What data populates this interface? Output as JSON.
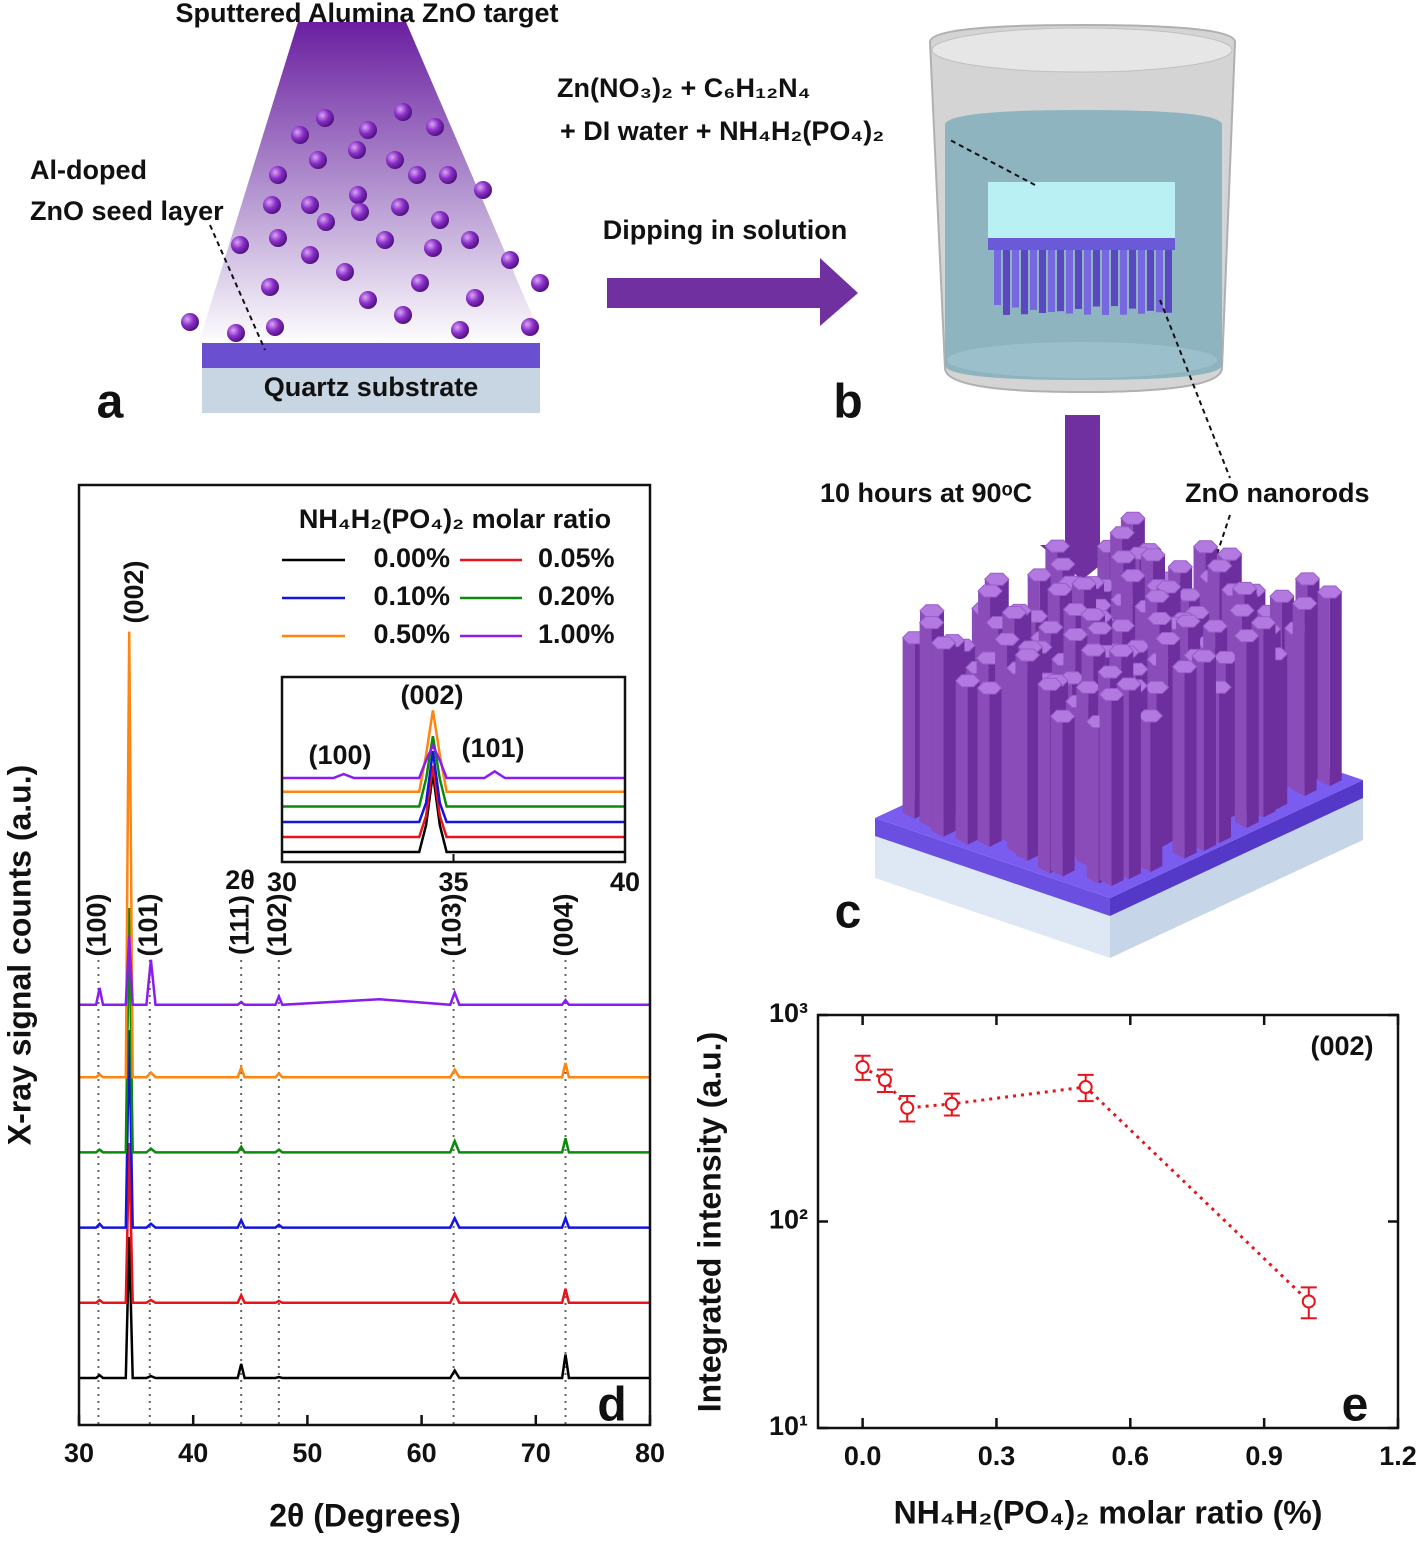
{
  "panel_a": {
    "title": "Sputtered Alumina ZnO target",
    "seed_label_lines": [
      "Al-doped",
      "ZnO seed layer"
    ],
    "substrate": "Quartz substrate",
    "panel_label": "a"
  },
  "panel_b": {
    "solution_lines": [
      "Zn(NO₃)₂ + C₆H₁₂N₄",
      "+ DI water + NH₄H₂(PO₄)₂"
    ],
    "arrow_label": "Dipping in solution",
    "panel_label": "b"
  },
  "panel_c": {
    "arrow_label": "10 hours at 90ᵒC",
    "nanorods_label": "ZnO nanorods",
    "panel_label": "c"
  },
  "chart_data": [
    {
      "type": "line",
      "panel_label": "d",
      "xlabel": "2θ (Degrees)",
      "ylabel": "X-ray signal counts (a.u.)",
      "legend_title": "NH₄H₂(PO₄)₂ molar ratio",
      "annotation": "(002)",
      "xlim": [
        30,
        80
      ],
      "xticks": [
        30,
        40,
        50,
        60,
        70,
        80
      ],
      "ylim": [
        0,
        100
      ],
      "x": [
        30,
        31.5,
        31.8,
        32.1,
        34.1,
        34.4,
        34.7,
        35.9,
        36.3,
        36.7,
        43.9,
        44.2,
        44.5,
        47.2,
        47.5,
        47.8,
        56.3,
        62.5,
        62.9,
        63.3,
        72.3,
        72.6,
        72.9,
        80
      ],
      "series": [
        {
          "name": "0.00%",
          "color": "#000000",
          "values": [
            5,
            5,
            5.3,
            5,
            5,
            20,
            5,
            5,
            5.2,
            5,
            5,
            6.5,
            5,
            5,
            5.1,
            5,
            5,
            5,
            5.8,
            5,
            5,
            7.5,
            5,
            5
          ]
        },
        {
          "name": "0.05%",
          "color": "#e8141c",
          "values": [
            13,
            13,
            13.3,
            13,
            13,
            30,
            13,
            13,
            13.3,
            13,
            13,
            13.8,
            13,
            13,
            13.2,
            13,
            13,
            13,
            14,
            13,
            13,
            14.5,
            13,
            13
          ]
        },
        {
          "name": "0.10%",
          "color": "#1414e0",
          "values": [
            21,
            21,
            21.4,
            21,
            21,
            42,
            21,
            21,
            21.4,
            21,
            21,
            21.8,
            21,
            21,
            21.3,
            21,
            21,
            21,
            22,
            21,
            21,
            22,
            21,
            21
          ]
        },
        {
          "name": "0.20%",
          "color": "#0a8a0a",
          "values": [
            29,
            29,
            29.3,
            29,
            29,
            55,
            29,
            29,
            29.4,
            29,
            29,
            29.6,
            29,
            29,
            29.3,
            29,
            29,
            29,
            30.2,
            29,
            29,
            30.5,
            29,
            29
          ]
        },
        {
          "name": "0.50%",
          "color": "#ff8410",
          "values": [
            37,
            37,
            37.3,
            37,
            37,
            84.4,
            37,
            37,
            37.5,
            37,
            37,
            38,
            37,
            37,
            37.4,
            37,
            37,
            37,
            37.8,
            37,
            37,
            38.5,
            37,
            37
          ]
        },
        {
          "name": "1.00%",
          "color": "#8a1cf0",
          "values": [
            44.7,
            44.7,
            46.5,
            44.7,
            44.7,
            52,
            44.7,
            44.7,
            49.5,
            44.7,
            44.7,
            45,
            44.7,
            44.7,
            45.6,
            44.7,
            45.3,
            44.7,
            46,
            44.7,
            44.7,
            45.2,
            44.7,
            44.7
          ]
        }
      ],
      "reference_lines": [
        {
          "x": 31.7,
          "label": "(100)"
        },
        {
          "x": 36.2,
          "label": "(101)"
        },
        {
          "x": 44.2,
          "label": "(111)"
        },
        {
          "x": 47.5,
          "label": "(102)"
        },
        {
          "x": 62.8,
          "label": "(103)"
        },
        {
          "x": 72.6,
          "label": "(004)"
        }
      ]
    },
    {
      "type": "line",
      "xlabel": "2θ",
      "annotations": [
        "(100)",
        "(002)",
        "(101)"
      ],
      "xlim": [
        30,
        40
      ],
      "xticks": [
        30,
        35,
        40
      ],
      "ylim": [
        0,
        100
      ],
      "x": [
        30,
        31.5,
        31.8,
        32.1,
        34.0,
        34.2,
        34.4,
        34.6,
        34.8,
        35.9,
        36.2,
        36.5,
        40
      ],
      "series": [
        {
          "color": "#000000",
          "values": [
            5.4,
            5.4,
            5.4,
            5.4,
            5.4,
            20,
            48,
            20,
            5.4,
            5.4,
            5.4,
            5.4,
            5.4
          ]
        },
        {
          "color": "#e8141c",
          "values": [
            13.5,
            13.5,
            13.5,
            13.5,
            13.5,
            25,
            52,
            25,
            13.5,
            13.5,
            13.5,
            13.5,
            13.5
          ]
        },
        {
          "color": "#1414e0",
          "values": [
            21.6,
            21.6,
            21.6,
            21.6,
            21.6,
            32,
            60,
            32,
            21.6,
            21.6,
            21.6,
            21.6,
            21.6
          ]
        },
        {
          "color": "#0a8a0a",
          "values": [
            30,
            30,
            30,
            30,
            30,
            45,
            68,
            45,
            30,
            30,
            30,
            30,
            30
          ]
        },
        {
          "color": "#ff8410",
          "values": [
            38,
            38,
            38,
            38,
            38,
            58,
            82,
            58,
            38,
            38,
            38,
            38,
            38
          ]
        },
        {
          "color": "#8a1cf0",
          "values": [
            45.4,
            45.4,
            47.5,
            45.4,
            45.4,
            55,
            63,
            55,
            45.4,
            45.4,
            49,
            45.4,
            45.4
          ]
        }
      ]
    },
    {
      "type": "scatter",
      "panel_label": "e",
      "xlabel": "NH₄H₂(PO₄)₂ molar ratio (%)",
      "ylabel": "Integrated intensity (a.u.)",
      "annotation": "(002)",
      "x": [
        0,
        0.05,
        0.1,
        0.2,
        0.5,
        1.0
      ],
      "values": [
        560,
        484,
        355,
        371,
        448,
        41
      ],
      "errors": [
        75,
        60,
        50,
        45,
        65,
        7
      ],
      "color": "#e8141c",
      "line_style": "dotted",
      "ylog": true,
      "xlim": [
        -0.1,
        1.2
      ],
      "xticks": [
        {
          "value": 0,
          "label": "0.0"
        },
        0.3,
        0.6,
        0.9,
        1.2
      ],
      "ylim": [
        10,
        1000
      ],
      "yticks": [
        {
          "value": 10,
          "label": "10¹"
        },
        {
          "value": 100,
          "label": "10²"
        },
        {
          "value": 1000,
          "label": "10³"
        }
      ]
    }
  ]
}
